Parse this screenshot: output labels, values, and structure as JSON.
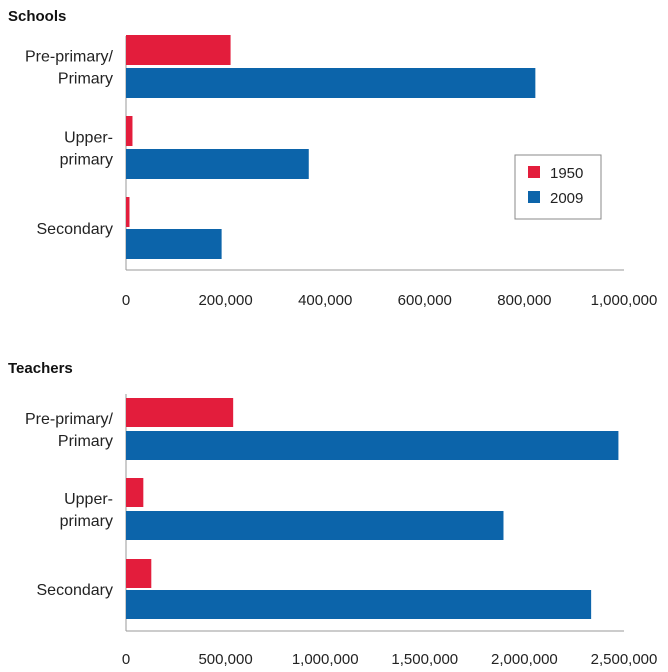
{
  "colors": {
    "s1950": "#e31d3c",
    "s2009": "#0c64aa",
    "axis": "#9a9a9a",
    "legend_border": "#888888"
  },
  "chart_data": [
    {
      "type": "bar",
      "orientation": "horizontal",
      "title": "Schools",
      "categories": [
        {
          "lines": [
            "Pre-primary/",
            "Primary"
          ]
        },
        {
          "lines": [
            "Upper-",
            "primary"
          ]
        },
        {
          "lines": [
            "Secondary"
          ]
        }
      ],
      "series": [
        {
          "name": "1950",
          "values": [
            210000,
            13000,
            7000
          ]
        },
        {
          "name": "2009",
          "values": [
            822000,
            367000,
            192000
          ]
        }
      ],
      "xlim": [
        0,
        1000000
      ],
      "xticks": [
        0,
        200000,
        400000,
        600000,
        800000,
        1000000
      ],
      "xtick_labels": [
        "0",
        "200,000",
        "400,000",
        "600,000",
        "800,000",
        "1,000,000"
      ],
      "legend": {
        "placement": "right",
        "entries": [
          "1950",
          "2009"
        ]
      }
    },
    {
      "type": "bar",
      "orientation": "horizontal",
      "title": "Teachers",
      "categories": [
        {
          "lines": [
            "Pre-primary/",
            "Primary"
          ]
        },
        {
          "lines": [
            "Upper-",
            "primary"
          ]
        },
        {
          "lines": [
            "Secondary"
          ]
        }
      ],
      "series": [
        {
          "name": "1950",
          "values": [
            538000,
            87000,
            127000
          ]
        },
        {
          "name": "2009",
          "values": [
            2472000,
            1895000,
            2335000
          ]
        }
      ],
      "xlim": [
        0,
        2500000
      ],
      "xticks": [
        0,
        500000,
        1000000,
        1500000,
        2000000,
        2500000
      ],
      "xtick_labels": [
        "0",
        "500,000",
        "1,000,000",
        "1,500,000",
        "2,000,000",
        "2,500,000"
      ]
    }
  ]
}
